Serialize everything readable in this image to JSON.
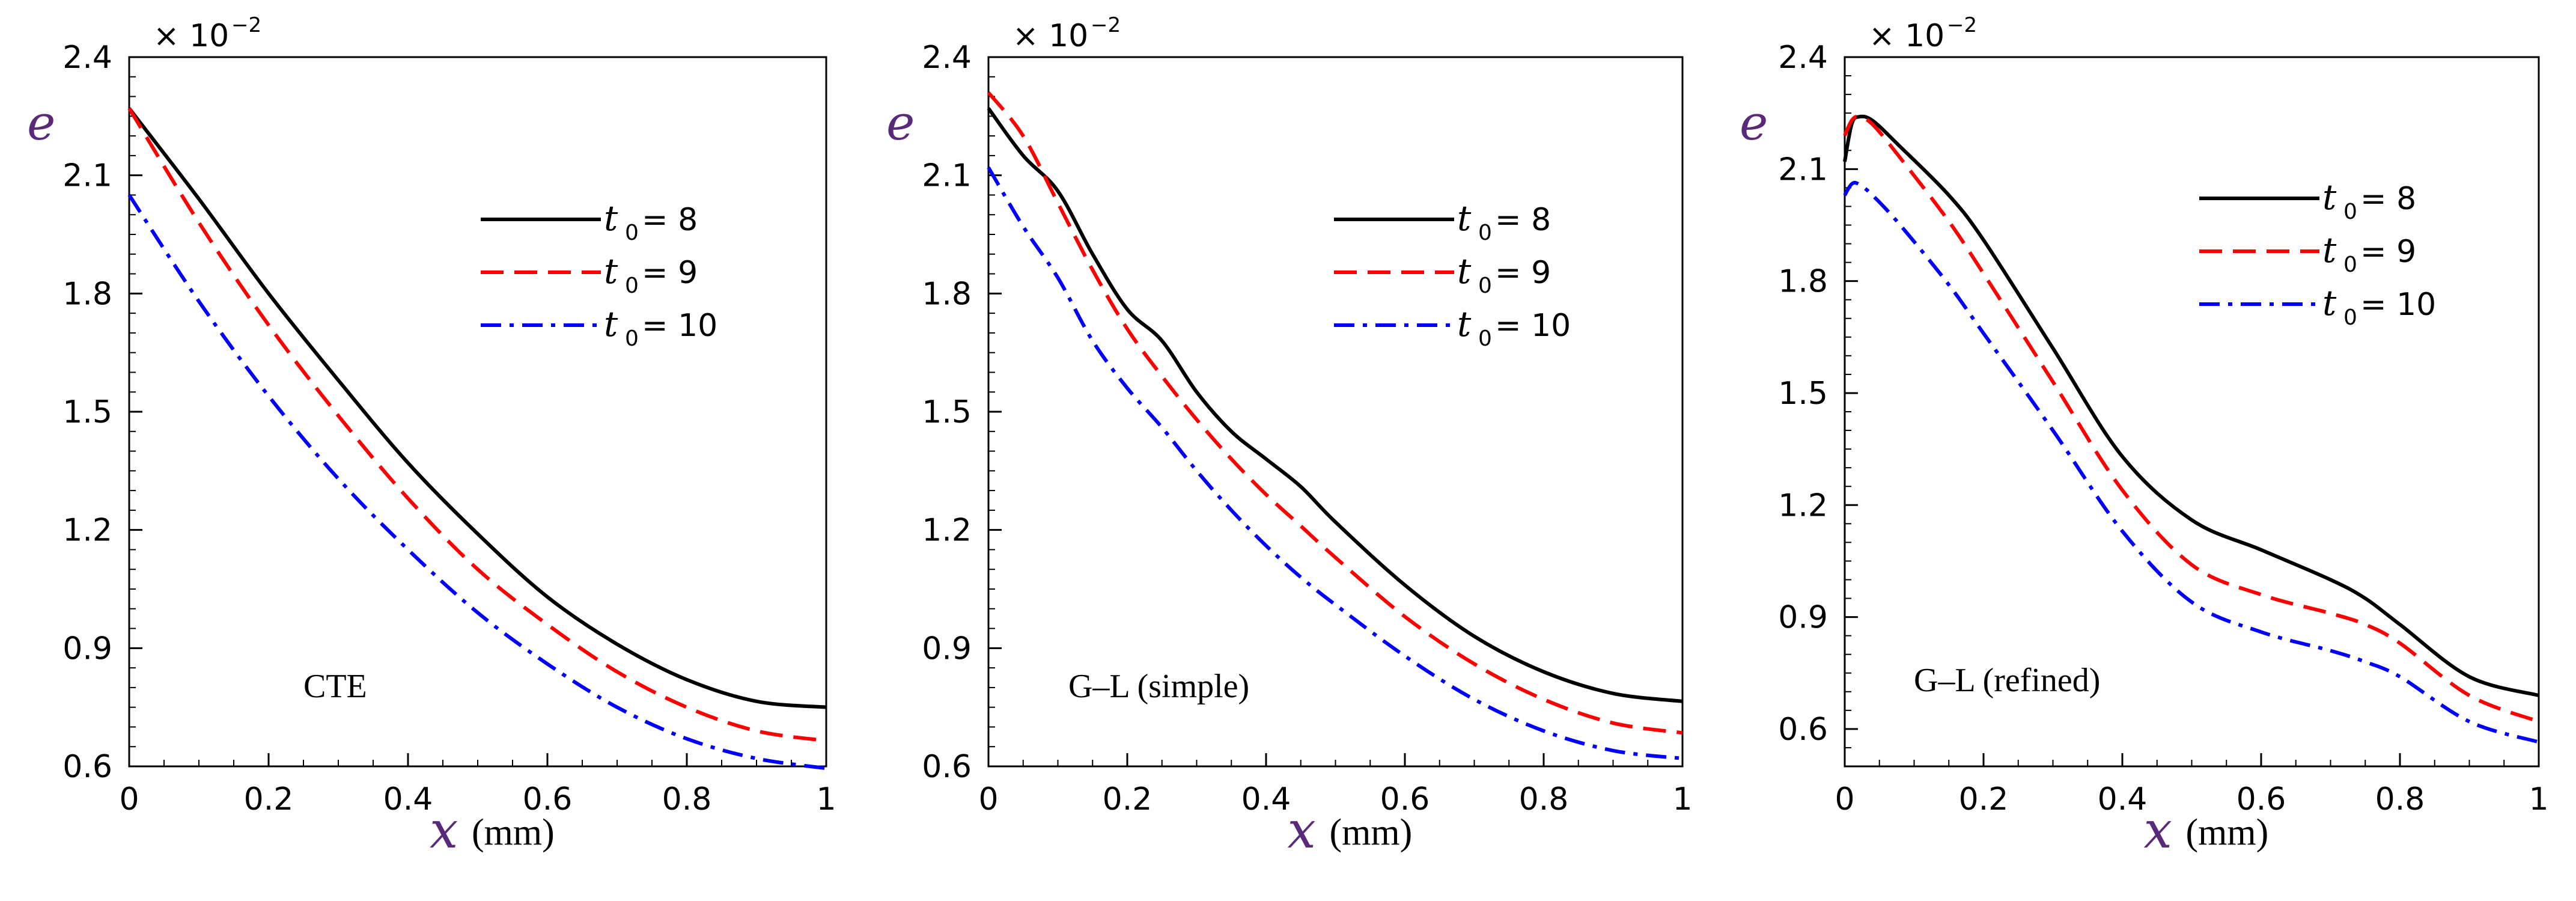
{
  "chart_data": [
    {
      "type": "line",
      "panel_label": "CTE",
      "multiplier": "× 10",
      "multiplier_exp": "−2",
      "ylabel": "e",
      "xlabel": "x",
      "xlabel_unit": "(mm)",
      "xlim": [
        0,
        1
      ],
      "ylim": [
        0.6,
        2.4
      ],
      "xticks": [
        0,
        0.2,
        0.4,
        0.6,
        0.8,
        1
      ],
      "xtick_labels": [
        "0",
        "0.2",
        "0.4",
        "0.6",
        "0.8",
        "1"
      ],
      "yticks": [
        0.6,
        0.9,
        1.2,
        1.5,
        1.8,
        2.1,
        2.4
      ],
      "ytick_labels": [
        "0.6",
        "0.9",
        "1.2",
        "1.5",
        "1.8",
        "2.1",
        "2.4"
      ],
      "legend_position": "upper-right",
      "series": [
        {
          "name": "t0 = 8",
          "label_main": "t",
          "label_sub": "0",
          "label_rest": " = 8",
          "color": "#000000",
          "style": "solid",
          "x": [
            0,
            0.1,
            0.2,
            0.3,
            0.4,
            0.5,
            0.6,
            0.7,
            0.8,
            0.9,
            1.0
          ],
          "y": [
            2.27,
            2.04,
            1.8,
            1.58,
            1.37,
            1.19,
            1.03,
            0.91,
            0.82,
            0.765,
            0.75
          ]
        },
        {
          "name": "t0 = 9",
          "label_main": "t",
          "label_sub": "0",
          "label_rest": " = 9",
          "color": "#ff0000",
          "style": "dashed",
          "x": [
            0,
            0.1,
            0.2,
            0.3,
            0.4,
            0.5,
            0.6,
            0.7,
            0.8,
            0.9,
            1.0
          ],
          "y": [
            2.27,
            1.98,
            1.72,
            1.49,
            1.28,
            1.1,
            0.96,
            0.84,
            0.75,
            0.69,
            0.665
          ]
        },
        {
          "name": "t0 = 10",
          "label_main": "t",
          "label_sub": "0",
          "label_rest": " = 10",
          "color": "#0000ff",
          "style": "dashdot",
          "x": [
            0,
            0.1,
            0.2,
            0.3,
            0.4,
            0.5,
            0.6,
            0.7,
            0.8,
            0.9,
            1.0
          ],
          "y": [
            2.05,
            1.78,
            1.54,
            1.33,
            1.15,
            0.99,
            0.86,
            0.75,
            0.67,
            0.62,
            0.595
          ]
        }
      ]
    },
    {
      "type": "line",
      "panel_label": "G–L (simple)",
      "multiplier": "× 10",
      "multiplier_exp": "−2",
      "ylabel": "e",
      "xlabel": "x",
      "xlabel_unit": "(mm)",
      "xlim": [
        0,
        1
      ],
      "ylim": [
        0.6,
        2.4
      ],
      "xticks": [
        0,
        0.2,
        0.4,
        0.6,
        0.8,
        1
      ],
      "xtick_labels": [
        "0",
        "0.2",
        "0.4",
        "0.6",
        "0.8",
        "1"
      ],
      "yticks": [
        0.6,
        0.9,
        1.2,
        1.5,
        1.8,
        2.1,
        2.4
      ],
      "ytick_labels": [
        "0.6",
        "0.9",
        "1.2",
        "1.5",
        "1.8",
        "2.1",
        "2.4"
      ],
      "legend_position": "upper-right",
      "series": [
        {
          "name": "t0 = 8",
          "label_main": "t",
          "label_sub": "0",
          "label_rest": " = 8",
          "color": "#000000",
          "style": "solid",
          "x": [
            0,
            0.05,
            0.1,
            0.15,
            0.2,
            0.25,
            0.3,
            0.35,
            0.4,
            0.45,
            0.5,
            0.6,
            0.7,
            0.8,
            0.9,
            1.0
          ],
          "y": [
            2.27,
            2.15,
            2.06,
            1.9,
            1.76,
            1.68,
            1.55,
            1.45,
            1.38,
            1.31,
            1.22,
            1.06,
            0.93,
            0.84,
            0.785,
            0.765
          ]
        },
        {
          "name": "t0 = 9",
          "label_main": "t",
          "label_sub": "0",
          "label_rest": " = 9",
          "color": "#ff0000",
          "style": "dashed",
          "x": [
            0,
            0.05,
            0.1,
            0.15,
            0.2,
            0.25,
            0.3,
            0.35,
            0.4,
            0.45,
            0.5,
            0.6,
            0.7,
            0.8,
            0.9,
            1.0
          ],
          "y": [
            2.31,
            2.2,
            2.03,
            1.86,
            1.71,
            1.59,
            1.48,
            1.38,
            1.29,
            1.21,
            1.13,
            0.98,
            0.86,
            0.77,
            0.71,
            0.685
          ]
        },
        {
          "name": "t0 = 10",
          "label_main": "t",
          "label_sub": "0",
          "label_rest": " = 10",
          "color": "#0000ff",
          "style": "dashdot",
          "x": [
            0,
            0.05,
            0.1,
            0.15,
            0.2,
            0.25,
            0.3,
            0.35,
            0.4,
            0.45,
            0.5,
            0.6,
            0.7,
            0.8,
            0.9,
            1.0
          ],
          "y": [
            2.12,
            1.97,
            1.84,
            1.68,
            1.56,
            1.46,
            1.35,
            1.25,
            1.16,
            1.08,
            1.01,
            0.88,
            0.77,
            0.69,
            0.64,
            0.62
          ]
        }
      ]
    },
    {
      "type": "line",
      "panel_label": "G–L (refined)",
      "multiplier": "× 10",
      "multiplier_exp": "−2",
      "ylabel": "e",
      "xlabel": "x",
      "xlabel_unit": "(mm)",
      "xlim": [
        0,
        1
      ],
      "ylim": [
        0.5,
        2.4
      ],
      "xticks": [
        0,
        0.2,
        0.4,
        0.6,
        0.8,
        1
      ],
      "xtick_labels": [
        "0",
        "0.2",
        "0.4",
        "0.6",
        "0.8",
        "1"
      ],
      "yticks": [
        0.6,
        0.9,
        1.2,
        1.5,
        1.8,
        2.1,
        2.4
      ],
      "ytick_labels": [
        "0.6",
        "0.9",
        "1.2",
        "1.5",
        "1.8",
        "2.1",
        "2.4"
      ],
      "legend_position": "upper-right",
      "series": [
        {
          "name": "t0 = 8",
          "label_main": "t",
          "label_sub": "0",
          "label_rest": " = 8",
          "color": "#000000",
          "style": "solid",
          "x": [
            0,
            0.01,
            0.02,
            0.04,
            0.08,
            0.15,
            0.2,
            0.3,
            0.4,
            0.5,
            0.6,
            0.7,
            0.75,
            0.8,
            0.9,
            1.0
          ],
          "y": [
            2.12,
            2.22,
            2.24,
            2.23,
            2.16,
            2.03,
            1.91,
            1.62,
            1.33,
            1.16,
            1.08,
            1.0,
            0.95,
            0.88,
            0.74,
            0.69
          ]
        },
        {
          "name": "t0 = 9",
          "label_main": "t",
          "label_sub": "0",
          "label_rest": " = 9",
          "color": "#ff0000",
          "style": "dashed",
          "x": [
            0,
            0.01,
            0.02,
            0.04,
            0.08,
            0.15,
            0.2,
            0.3,
            0.4,
            0.5,
            0.6,
            0.7,
            0.75,
            0.8,
            0.9,
            1.0
          ],
          "y": [
            2.19,
            2.23,
            2.24,
            2.22,
            2.13,
            1.96,
            1.82,
            1.53,
            1.24,
            1.04,
            0.96,
            0.91,
            0.88,
            0.83,
            0.69,
            0.62
          ]
        },
        {
          "name": "t0 = 10",
          "label_main": "t",
          "label_sub": "0",
          "label_rest": " = 10",
          "color": "#0000ff",
          "style": "dashdot",
          "x": [
            0,
            0.01,
            0.02,
            0.04,
            0.08,
            0.15,
            0.2,
            0.3,
            0.4,
            0.5,
            0.6,
            0.7,
            0.75,
            0.8,
            0.9,
            1.0
          ],
          "y": [
            2.03,
            2.06,
            2.06,
            2.03,
            1.95,
            1.79,
            1.66,
            1.4,
            1.13,
            0.94,
            0.86,
            0.81,
            0.78,
            0.74,
            0.62,
            0.565
          ]
        }
      ]
    }
  ]
}
